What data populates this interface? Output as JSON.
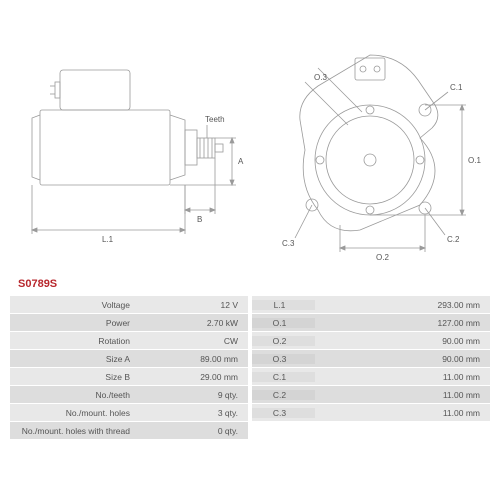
{
  "part_number": "S0789S",
  "diagram_side": {
    "labels": {
      "teeth": "Teeth",
      "A": "A",
      "B": "B",
      "L1": "L.1"
    },
    "line_color": "#9a9a9a",
    "line_width": 0.8,
    "bg": "#ffffff"
  },
  "diagram_front": {
    "labels": {
      "O1": "O.1",
      "O2": "O.2",
      "O3": "O.3",
      "C1": "C.1",
      "C2": "C.2",
      "C3": "C.3"
    },
    "line_color": "#9a9a9a",
    "line_width": 0.8
  },
  "specs_left": [
    {
      "label": "Voltage",
      "value": "12 V"
    },
    {
      "label": "Power",
      "value": "2.70 kW"
    },
    {
      "label": "Rotation",
      "value": "CW"
    },
    {
      "label": "Size A",
      "value": "89.00 mm"
    },
    {
      "label": "Size B",
      "value": "29.00 mm"
    },
    {
      "label": "No./teeth",
      "value": "9 qty."
    },
    {
      "label": "No./mount. holes",
      "value": "3 qty."
    },
    {
      "label": "No./mount. holes with thread",
      "value": "0 qty."
    }
  ],
  "specs_right": [
    {
      "label": "L.1",
      "value": "293.00 mm"
    },
    {
      "label": "O.1",
      "value": "127.00 mm"
    },
    {
      "label": "O.2",
      "value": "90.00 mm"
    },
    {
      "label": "O.3",
      "value": "90.00 mm"
    },
    {
      "label": "C.1",
      "value": "11.00 mm"
    },
    {
      "label": "C.2",
      "value": "11.00 mm"
    },
    {
      "label": "C.3",
      "value": "11.00 mm"
    }
  ],
  "colors": {
    "row_odd": "#e8e8e8",
    "row_even": "#dddddd",
    "text": "#555555",
    "accent": "#b8272d"
  },
  "fonts": {
    "body_size": 9,
    "label_size": 8.5,
    "partnum_size": 11
  }
}
